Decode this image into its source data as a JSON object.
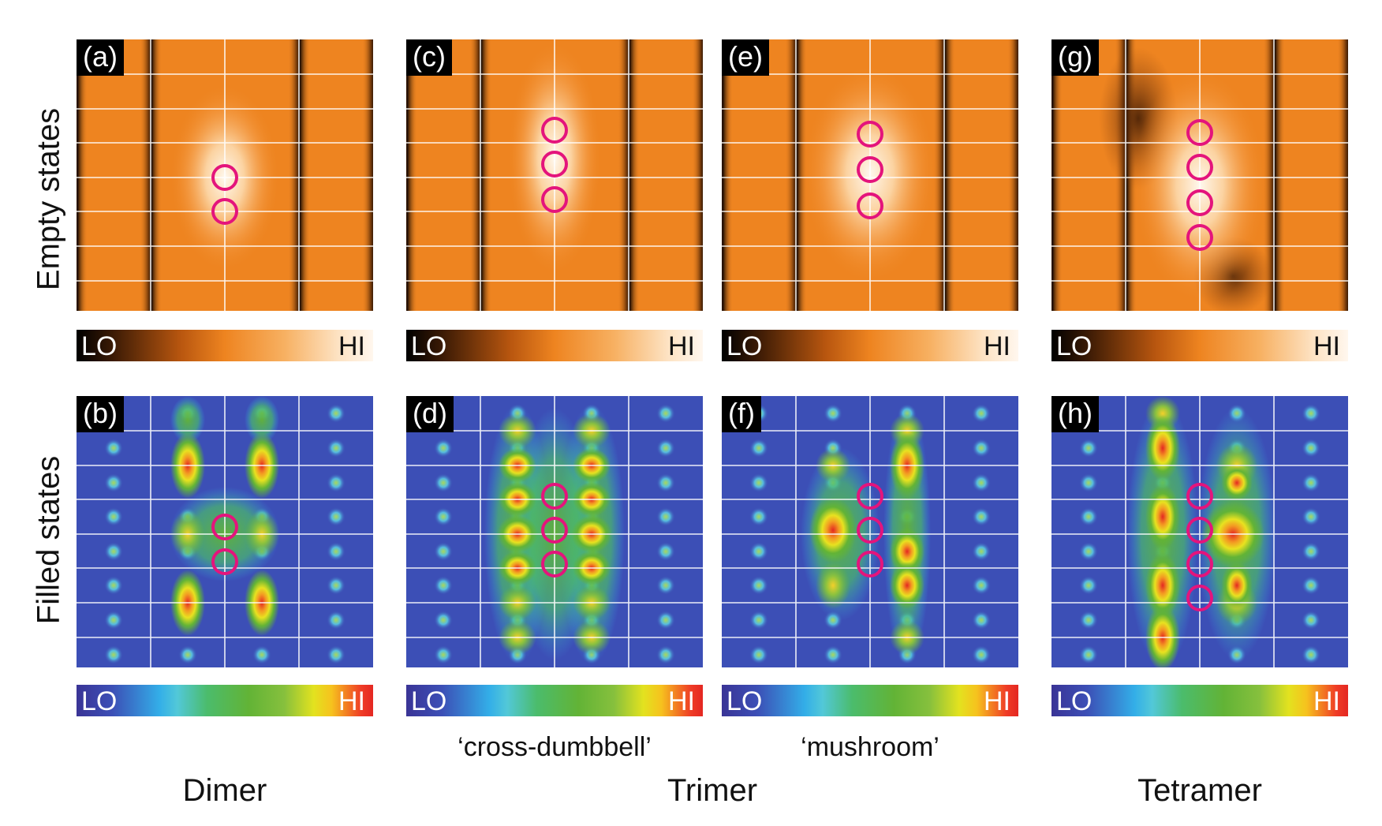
{
  "row_labels": {
    "empty": "Empty states",
    "filled": "Filled states"
  },
  "panels": {
    "a": {
      "tag": "(a)",
      "kind": "empty",
      "circles": 2
    },
    "c": {
      "tag": "(c)",
      "kind": "empty",
      "circles": 3
    },
    "e": {
      "tag": "(e)",
      "kind": "empty",
      "circles": 3
    },
    "g": {
      "tag": "(g)",
      "kind": "empty",
      "circles": 4
    },
    "b": {
      "tag": "(b)",
      "kind": "filled",
      "circles": 2
    },
    "d": {
      "tag": "(d)",
      "kind": "filled",
      "circles": 3
    },
    "f": {
      "tag": "(f)",
      "kind": "filled",
      "circles": 3
    },
    "h": {
      "tag": "(h)",
      "kind": "filled",
      "circles": 4
    }
  },
  "colorbar": {
    "lo": "LO",
    "hi": "HI"
  },
  "subtitles": {
    "cross": "‘cross-dumbbell’",
    "mushroom": "‘mushroom’"
  },
  "groups": {
    "dimer": "Dimer",
    "trimer": "Trimer",
    "tetramer": "Tetramer"
  },
  "colors": {
    "circle": "#e4147c",
    "orange_base": "#ee8420",
    "blue_base": "#3c4fb6"
  }
}
